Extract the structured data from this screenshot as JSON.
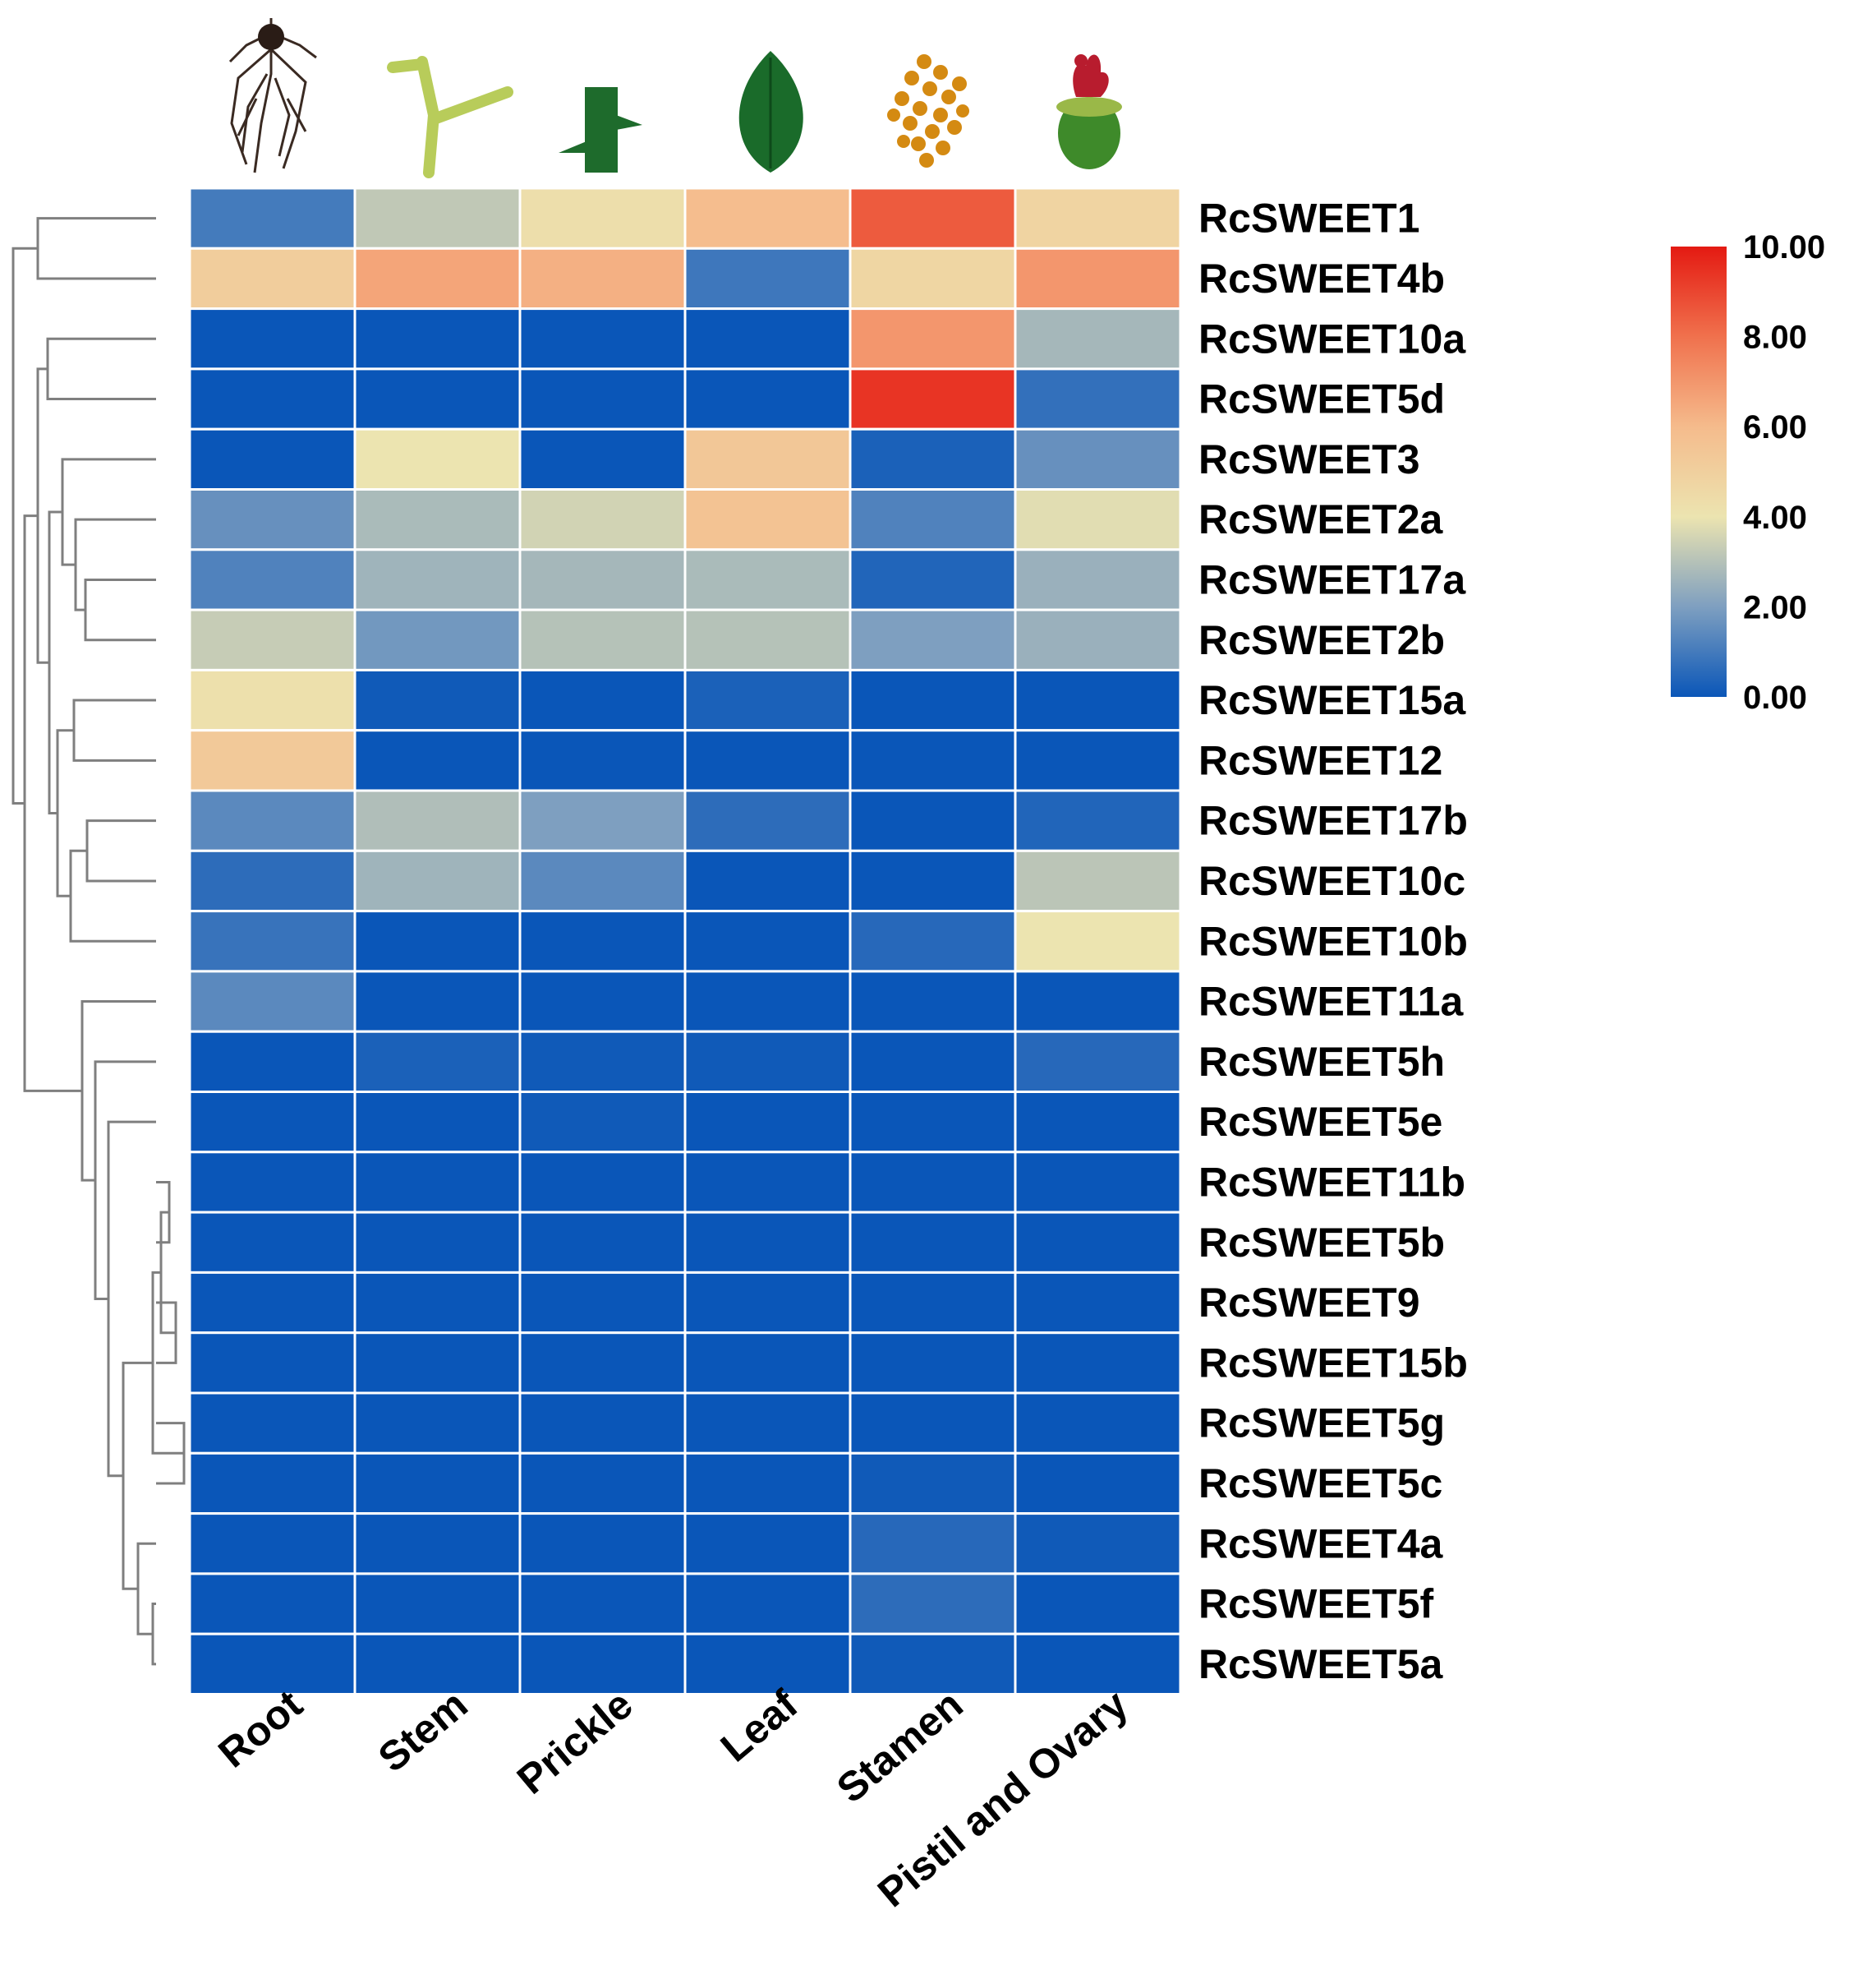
{
  "chart_data": {
    "type": "heatmap",
    "columns": [
      "Root",
      "Stem",
      "Prickle",
      "Leaf",
      "Stamen",
      "Pistil and Ovary"
    ],
    "column_icons": [
      "root-icon",
      "stem-icon",
      "prickle-icon",
      "leaf-icon",
      "stamen-icon",
      "pistil-ovary-icon"
    ],
    "rows": [
      "RcSWEET1",
      "RcSWEET4b",
      "RcSWEET10a",
      "RcSWEET5d",
      "RcSWEET3",
      "RcSWEET2a",
      "RcSWEET17a",
      "RcSWEET2b",
      "RcSWEET15a",
      "RcSWEET12",
      "RcSWEET17b",
      "RcSWEET10c",
      "RcSWEET10b",
      "RcSWEET11a",
      "RcSWEET5h",
      "RcSWEET5e",
      "RcSWEET11b",
      "RcSWEET5b",
      "RcSWEET9",
      "RcSWEET15b",
      "RcSWEET5g",
      "RcSWEET5c",
      "RcSWEET4a",
      "RcSWEET5f",
      "RcSWEET5a"
    ],
    "values": [
      [
        1.0,
        3.2,
        4.3,
        5.9,
        8.5,
        4.8
      ],
      [
        5.1,
        6.6,
        6.3,
        0.9,
        4.7,
        7.0
      ],
      [
        0.0,
        0.0,
        0.0,
        0.0,
        7.0,
        2.7
      ],
      [
        0.0,
        0.0,
        0.0,
        0.0,
        9.4,
        0.7
      ],
      [
        0.0,
        4.0,
        0.0,
        5.4,
        0.3,
        1.6
      ],
      [
        1.6,
        2.8,
        3.5,
        5.6,
        1.2,
        3.8
      ],
      [
        1.2,
        2.6,
        2.7,
        2.8,
        0.4,
        2.5
      ],
      [
        3.3,
        1.8,
        3.0,
        3.0,
        2.0,
        2.5
      ],
      [
        4.2,
        0.1,
        0.0,
        0.3,
        0.0,
        0.0
      ],
      [
        5.3,
        0.0,
        0.0,
        0.0,
        0.0,
        0.0
      ],
      [
        1.4,
        2.9,
        2.0,
        0.6,
        0.0,
        0.4
      ],
      [
        0.6,
        2.6,
        1.4,
        0.0,
        0.0,
        3.1
      ],
      [
        0.8,
        0.0,
        0.0,
        0.0,
        0.5,
        4.0
      ],
      [
        1.4,
        0.0,
        0.0,
        0.0,
        0.0,
        0.0
      ],
      [
        0.0,
        0.3,
        0.1,
        0.1,
        0.0,
        0.5
      ],
      [
        0.0,
        0.0,
        0.1,
        0.0,
        0.0,
        0.0
      ],
      [
        0.0,
        0.0,
        0.0,
        0.0,
        0.0,
        0.0
      ],
      [
        0.0,
        0.0,
        0.0,
        0.0,
        0.0,
        0.0
      ],
      [
        0.0,
        0.0,
        0.0,
        0.0,
        0.0,
        0.0
      ],
      [
        0.0,
        0.0,
        0.0,
        0.0,
        0.0,
        0.0
      ],
      [
        0.0,
        0.0,
        0.0,
        0.0,
        0.0,
        0.0
      ],
      [
        0.0,
        0.0,
        0.0,
        0.0,
        0.1,
        0.0
      ],
      [
        0.0,
        0.0,
        0.0,
        0.0,
        0.5,
        0.1
      ],
      [
        0.0,
        0.0,
        0.0,
        0.0,
        0.6,
        0.0
      ],
      [
        0.0,
        0.0,
        0.0,
        0.0,
        0.1,
        0.0
      ]
    ],
    "color_scale": {
      "min": 0,
      "max": 10,
      "stops": [
        {
          "value": 0,
          "color": "#0a56b8"
        },
        {
          "value": 2,
          "color": "#7e9fc0"
        },
        {
          "value": 4,
          "color": "#ece4b0"
        },
        {
          "value": 6,
          "color": "#f5bb8c"
        },
        {
          "value": 8,
          "color": "#f0714d"
        },
        {
          "value": 10,
          "color": "#e41a12"
        }
      ],
      "tick_labels": [
        "10.00",
        "8.00",
        "6.00",
        "4.00",
        "2.00",
        "0.00"
      ],
      "tick_values": [
        10,
        8,
        6,
        4,
        2,
        0
      ]
    },
    "dendrogram": "rows",
    "grid_color": "#ffffff",
    "dendrogram_color": "#7f7f7f"
  }
}
